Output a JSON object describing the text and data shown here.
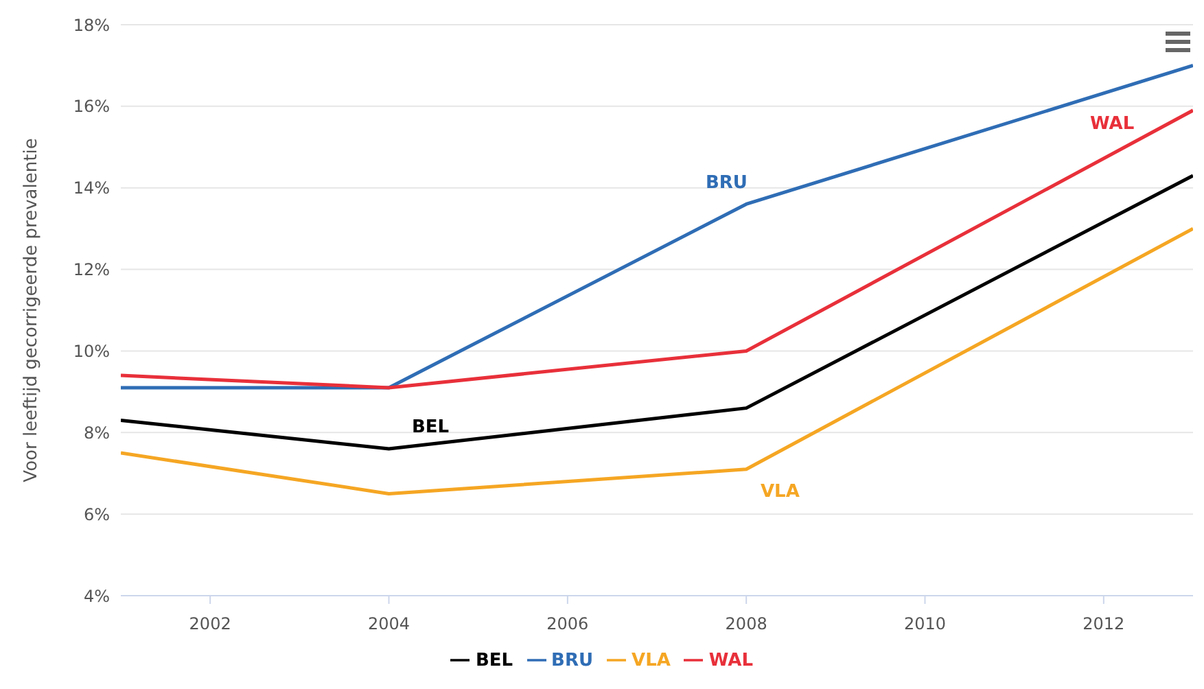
{
  "chart_data": {
    "type": "line",
    "ylabel": "Voor leeftijd gecorrigeerde prevalentie",
    "x": [
      2001,
      2004,
      2008,
      2013
    ],
    "xlim": [
      2001,
      2013
    ],
    "xticks": [
      2002,
      2004,
      2006,
      2008,
      2010,
      2012
    ],
    "ylim": [
      4,
      18
    ],
    "yticks": [
      {
        "value": 4,
        "label": "4%"
      },
      {
        "value": 6,
        "label": "6%"
      },
      {
        "value": 8,
        "label": "8%"
      },
      {
        "value": 10,
        "label": "10%"
      },
      {
        "value": 12,
        "label": "12%"
      },
      {
        "value": 14,
        "label": "14%"
      },
      {
        "value": 16,
        "label": "16%"
      },
      {
        "value": 18,
        "label": "18%"
      }
    ],
    "grid": "y",
    "legend": "bottom",
    "marker": "none",
    "line_style": "solid",
    "series": [
      {
        "name": "BEL",
        "color": "#000000",
        "values": [
          8.3,
          7.6,
          8.6,
          14.3
        ]
      },
      {
        "name": "BRU",
        "color": "#2f6db5",
        "values": [
          9.1,
          9.1,
          13.6,
          17.0
        ]
      },
      {
        "name": "VLA",
        "color": "#f5a623",
        "values": [
          7.5,
          6.5,
          7.1,
          13.0
        ]
      },
      {
        "name": "WAL",
        "color": "#e8303a",
        "values": [
          9.4,
          9.1,
          10.0,
          15.9
        ]
      }
    ],
    "annotations": [
      "BEL",
      "BRU",
      "VLA",
      "WAL"
    ]
  }
}
